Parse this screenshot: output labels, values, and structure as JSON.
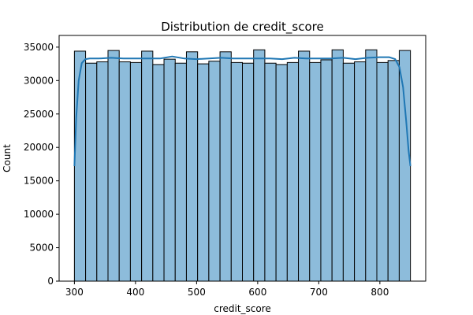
{
  "chart_data": {
    "type": "bar",
    "subtype": "histogram-with-kde",
    "title": "Distribution de credit_score",
    "xlabel": "credit_score",
    "ylabel": "Count",
    "xlim": [
      275,
      875
    ],
    "ylim": [
      0,
      36750
    ],
    "xticks": [
      "300",
      "400",
      "500",
      "600",
      "700",
      "800"
    ],
    "yticks": [
      "0",
      "5000",
      "10000",
      "15000",
      "20000",
      "25000",
      "30000",
      "35000"
    ],
    "bin_range": [
      300,
      850
    ],
    "bins": 30,
    "values": [
      34400,
      32600,
      32800,
      34500,
      32800,
      32700,
      34400,
      32400,
      33200,
      32600,
      34300,
      32500,
      32900,
      34300,
      32700,
      32600,
      34600,
      32600,
      32400,
      32700,
      34400,
      32700,
      33100,
      34600,
      32600,
      32800,
      34600,
      32700,
      33000,
      34500
    ],
    "kde": {
      "x": [
        300,
        303,
        307,
        312,
        318,
        325,
        340,
        360,
        380,
        400,
        420,
        440,
        460,
        480,
        500,
        520,
        540,
        560,
        580,
        600,
        620,
        640,
        660,
        680,
        700,
        720,
        740,
        760,
        780,
        800,
        815,
        825,
        832,
        838,
        843,
        847,
        850
      ],
      "y": [
        17200,
        24500,
        30000,
        32600,
        33200,
        33300,
        33300,
        33400,
        33300,
        33300,
        33300,
        33300,
        33600,
        33300,
        33200,
        33300,
        33400,
        33300,
        33300,
        33300,
        33300,
        33200,
        33400,
        33300,
        33300,
        33300,
        33400,
        33200,
        33400,
        33500,
        33500,
        33200,
        32000,
        29000,
        24000,
        19500,
        17200
      ]
    },
    "grid": false,
    "legend": "none",
    "bar_fill": "#8dbcdb",
    "bar_edge": "#000000",
    "kde_color": "#1f77b4"
  }
}
